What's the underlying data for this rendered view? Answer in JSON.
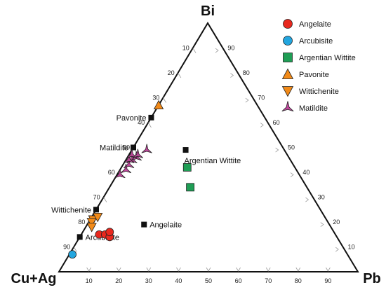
{
  "chart_data": {
    "type": "scatter",
    "subtype": "ternary",
    "vertices": {
      "top": "Bi",
      "left": "Cu+Ag",
      "right": "Pb"
    },
    "ticks": {
      "left_edge": [
        "10",
        "20",
        "30",
        "40",
        "50",
        "60",
        "70",
        "80",
        "90"
      ],
      "right_edge": [
        "90",
        "80",
        "70",
        "60",
        "50",
        "40",
        "30",
        "20",
        "10"
      ],
      "bottom_edge": [
        "10",
        "20",
        "30",
        "40",
        "50",
        "60",
        "70",
        "80",
        "90"
      ],
      "ticks_on": {
        "left_edge": "Cu+Ag",
        "right_edge": "Bi",
        "bottom_edge": "Pb"
      }
    },
    "series": [
      {
        "name": "Angelaite",
        "marker": "circle",
        "color": "#e8281e",
        "points": [
          {
            "cuag": 79,
            "bi": 15,
            "pb": 6
          },
          {
            "cuag": 77,
            "bi": 15,
            "pb": 8
          },
          {
            "cuag": 76,
            "bi": 14,
            "pb": 10
          },
          {
            "cuag": 75,
            "bi": 16,
            "pb": 9
          }
        ]
      },
      {
        "name": "Arcubisite",
        "marker": "circle",
        "color": "#23a6df",
        "points": [
          {
            "cuag": 92,
            "bi": 7,
            "pb": 1
          }
        ]
      },
      {
        "name": "Argentian Wittite",
        "marker": "square",
        "color": "#1f9e55",
        "points": [
          {
            "cuag": 36,
            "bi": 42,
            "pb": 22
          },
          {
            "cuag": 39,
            "bi": 34,
            "pb": 27
          }
        ]
      },
      {
        "name": "Pavonite",
        "marker": "triangle-up",
        "color": "#f28a18",
        "points": [
          {
            "cuag": 33,
            "bi": 67,
            "pb": 0
          }
        ]
      },
      {
        "name": "Wittichenite",
        "marker": "triangle-down",
        "color": "#f28a18",
        "points": [
          {
            "cuag": 78,
            "bi": 21,
            "pb": 1
          },
          {
            "cuag": 79,
            "bi": 20,
            "pb": 1
          },
          {
            "cuag": 76,
            "bi": 22,
            "pb": 2
          },
          {
            "cuag": 80,
            "bi": 18,
            "pb": 2
          }
        ]
      },
      {
        "name": "Matildite",
        "marker": "tri-star",
        "color": "#c0479c",
        "points": [
          {
            "cuag": 53,
            "bi": 45,
            "pb": 2
          },
          {
            "cuag": 55,
            "bi": 43,
            "pb": 2
          },
          {
            "cuag": 54,
            "bi": 45,
            "pb": 1
          },
          {
            "cuag": 57,
            "bi": 41,
            "pb": 2
          },
          {
            "cuag": 51,
            "bi": 46,
            "pb": 3
          },
          {
            "cuag": 52,
            "bi": 47,
            "pb": 1
          },
          {
            "cuag": 50,
            "bi": 47,
            "pb": 3
          },
          {
            "cuag": 46,
            "bi": 49,
            "pb": 5
          },
          {
            "cuag": 60,
            "bi": 39,
            "pb": 1
          }
        ]
      }
    ],
    "reference_points": [
      {
        "label": "Pavonite",
        "cuag": 38,
        "bi": 62,
        "pb": 0,
        "label_side": "left"
      },
      {
        "label": "Argentian Wittite",
        "cuag": 33,
        "bi": 49,
        "pb": 18,
        "label_side": "below-right"
      },
      {
        "label": "Matildite",
        "cuag": 50,
        "bi": 50,
        "pb": 0,
        "label_side": "left"
      },
      {
        "label": "Wittichenite",
        "cuag": 75,
        "bi": 25,
        "pb": 0,
        "label_side": "left"
      },
      {
        "label": "Angelaite",
        "cuag": 62,
        "bi": 19,
        "pb": 19,
        "label_side": "right"
      },
      {
        "label": "Arcubisite",
        "cuag": 86,
        "bi": 14,
        "pb": 0,
        "label_side": "right"
      }
    ],
    "legend": {
      "position": "top-right"
    }
  }
}
